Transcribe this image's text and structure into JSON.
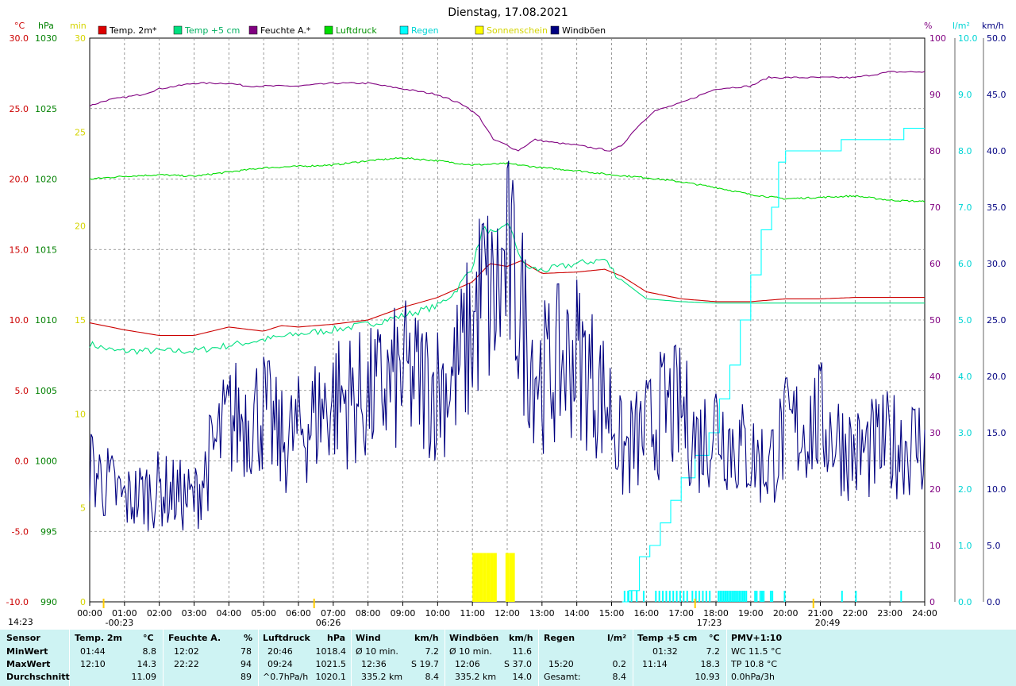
{
  "chart_data": {
    "type": "line",
    "title": "Dienstag, 17.08.2021",
    "x_ticks": [
      "00:00",
      "01:00",
      "02:00",
      "03:00",
      "04:00",
      "05:00",
      "06:00",
      "07:00",
      "08:00",
      "09:00",
      "10:00",
      "11:00",
      "12:00",
      "13:00",
      "14:00",
      "15:00",
      "16:00",
      "17:00",
      "18:00",
      "19:00",
      "20:00",
      "21:00",
      "22:00",
      "23:00",
      "24:00"
    ],
    "axes": {
      "temp": {
        "label": "°C",
        "ticks": [
          "30.0",
          "25.0",
          "20.0",
          "15.0",
          "10.0",
          "5.0",
          "0.0",
          "-5.0",
          "-10.0"
        ],
        "min": -10,
        "max": 30,
        "color": "#cc0000"
      },
      "pressure": {
        "label": "hPa",
        "ticks": [
          "1030",
          "1025",
          "1020",
          "1015",
          "1010",
          "1005",
          "1000",
          "995",
          "990"
        ],
        "min": 990,
        "max": 1030,
        "color": "#008000"
      },
      "sunshine": {
        "label": "min",
        "ticks": [
          "30",
          "25",
          "20",
          "15",
          "10",
          "5",
          "0"
        ],
        "min": 0,
        "max": 30,
        "color": "#d4d400"
      },
      "humidity": {
        "label": "%",
        "ticks": [
          "100",
          "90",
          "80",
          "70",
          "60",
          "50",
          "40",
          "30",
          "20",
          "10",
          "0"
        ],
        "min": 0,
        "max": 100,
        "color": "#800080"
      },
      "rain": {
        "label": "l/m²",
        "ticks": [
          "10.0",
          "9.0",
          "8.0",
          "7.0",
          "6.0",
          "5.0",
          "4.0",
          "3.0",
          "2.0",
          "1.0",
          "0.0"
        ],
        "min": 0,
        "max": 10,
        "color": "#00d4d4"
      },
      "wind": {
        "label": "km/h",
        "ticks": [
          "50.0",
          "45.0",
          "40.0",
          "35.0",
          "30.0",
          "25.0",
          "20.0",
          "15.0",
          "10.0",
          "5.0",
          "0.0"
        ],
        "min": 0,
        "max": 50,
        "color": "#000080"
      }
    },
    "legend": [
      {
        "name": "Temp. 2m*",
        "color": "#dd0000"
      },
      {
        "name": "Temp +5 cm",
        "color": "#00e080"
      },
      {
        "name": "Feuchte A.*",
        "color": "#800080"
      },
      {
        "name": "Luftdruck",
        "color": "#00dd00"
      },
      {
        "name": "Regen",
        "color": "#00ffff"
      },
      {
        "name": "Sonnenschein",
        "color": "#ffff00"
      },
      {
        "name": "Windböen",
        "color": "#000080"
      }
    ],
    "series": [
      {
        "key": "temp2m",
        "axis": "temp",
        "color": "#cc0000",
        "points": [
          [
            0,
            9.8
          ],
          [
            1,
            9.3
          ],
          [
            2,
            8.9
          ],
          [
            3,
            8.9
          ],
          [
            4,
            9.5
          ],
          [
            5,
            9.2
          ],
          [
            5.5,
            9.6
          ],
          [
            6,
            9.5
          ],
          [
            7,
            9.7
          ],
          [
            8,
            10.0
          ],
          [
            9,
            10.9
          ],
          [
            10,
            11.6
          ],
          [
            11,
            12.7
          ],
          [
            11.5,
            14.0
          ],
          [
            12,
            13.8
          ],
          [
            12.4,
            14.2
          ],
          [
            13,
            13.3
          ],
          [
            14,
            13.4
          ],
          [
            14.8,
            13.6
          ],
          [
            15.3,
            13.1
          ],
          [
            16,
            12.0
          ],
          [
            17,
            11.5
          ],
          [
            18,
            11.3
          ],
          [
            19,
            11.3
          ],
          [
            20,
            11.5
          ],
          [
            21,
            11.5
          ],
          [
            22,
            11.6
          ],
          [
            23,
            11.6
          ],
          [
            24,
            11.6
          ]
        ]
      },
      {
        "key": "temp5cm",
        "axis": "temp",
        "color": "#00e080",
        "points": [
          [
            0,
            8.3
          ],
          [
            0.7,
            7.8
          ],
          [
            2,
            7.8
          ],
          [
            3,
            7.8
          ],
          [
            4,
            8.2
          ],
          [
            5,
            8.6
          ],
          [
            6,
            9.0
          ],
          [
            7,
            9.3
          ],
          [
            8,
            9.7
          ],
          [
            9,
            10.3
          ],
          [
            10,
            11.0
          ],
          [
            10.5,
            12.0
          ],
          [
            11,
            13.8
          ],
          [
            11.3,
            16.5
          ],
          [
            11.7,
            16.0
          ],
          [
            12,
            17.0
          ],
          [
            12.3,
            15.0
          ],
          [
            12.5,
            13.8
          ],
          [
            13,
            13.5
          ],
          [
            14,
            14.0
          ],
          [
            14.8,
            14.3
          ],
          [
            15.2,
            13.0
          ],
          [
            16,
            11.5
          ],
          [
            17,
            11.3
          ],
          [
            18,
            11.2
          ],
          [
            19,
            11.2
          ],
          [
            20,
            11.2
          ],
          [
            21,
            11.2
          ],
          [
            22,
            11.2
          ],
          [
            23,
            11.2
          ],
          [
            24,
            11.2
          ]
        ],
        "dashed_from": 15.3
      },
      {
        "key": "humidity",
        "axis": "humidity",
        "color": "#800080",
        "points": [
          [
            0,
            88
          ],
          [
            0.5,
            89
          ],
          [
            1,
            89.5
          ],
          [
            1.5,
            90
          ],
          [
            2,
            91
          ],
          [
            3,
            92
          ],
          [
            4,
            92
          ],
          [
            4.5,
            91.5
          ],
          [
            5,
            91.5
          ],
          [
            5.5,
            91.5
          ],
          [
            6,
            91.5
          ],
          [
            7,
            92
          ],
          [
            8,
            92
          ],
          [
            8.5,
            91.5
          ],
          [
            9,
            91
          ],
          [
            10,
            90
          ],
          [
            10.8,
            88
          ],
          [
            11.2,
            86
          ],
          [
            11.6,
            82
          ],
          [
            12,
            81
          ],
          [
            12.3,
            80
          ],
          [
            12.8,
            82
          ],
          [
            13.3,
            81.5
          ],
          [
            14,
            81
          ],
          [
            14.5,
            80.5
          ],
          [
            15,
            80
          ],
          [
            15.3,
            81
          ],
          [
            15.7,
            84
          ],
          [
            16.2,
            87
          ],
          [
            17,
            88.5
          ],
          [
            18,
            91
          ],
          [
            19,
            91.5
          ],
          [
            19.5,
            93
          ],
          [
            20,
            93
          ],
          [
            21,
            93
          ],
          [
            22,
            93
          ],
          [
            23,
            94
          ],
          [
            24,
            94
          ]
        ]
      },
      {
        "key": "pressure",
        "axis": "pressure",
        "color": "#00dd00",
        "points": [
          [
            0,
            1020.0
          ],
          [
            1,
            1020.2
          ],
          [
            2,
            1020.3
          ],
          [
            3,
            1020.2
          ],
          [
            4,
            1020.5
          ],
          [
            5,
            1020.8
          ],
          [
            6,
            1020.9
          ],
          [
            7,
            1021.0
          ],
          [
            8,
            1021.3
          ],
          [
            9,
            1021.5
          ],
          [
            10,
            1021.3
          ],
          [
            11,
            1021.0
          ],
          [
            12,
            1021.1
          ],
          [
            13,
            1020.8
          ],
          [
            14,
            1020.6
          ],
          [
            15,
            1020.3
          ],
          [
            16,
            1020.1
          ],
          [
            17,
            1019.8
          ],
          [
            18,
            1019.4
          ],
          [
            19,
            1018.9
          ],
          [
            20,
            1018.6
          ],
          [
            21,
            1018.7
          ],
          [
            22,
            1018.8
          ],
          [
            23,
            1018.5
          ],
          [
            24,
            1018.4
          ]
        ]
      },
      {
        "key": "rain",
        "axis": "rain",
        "color": "#00ffff",
        "step": true,
        "points": [
          [
            15.3,
            0
          ],
          [
            15.5,
            0.2
          ],
          [
            15.8,
            0.8
          ],
          [
            16.1,
            1.0
          ],
          [
            16.4,
            1.4
          ],
          [
            16.7,
            1.8
          ],
          [
            17,
            2.2
          ],
          [
            17.4,
            2.6
          ],
          [
            17.8,
            3.0
          ],
          [
            18.1,
            3.6
          ],
          [
            18.4,
            4.2
          ],
          [
            18.7,
            5.0
          ],
          [
            19.0,
            5.8
          ],
          [
            19.3,
            6.6
          ],
          [
            19.6,
            7.0
          ],
          [
            19.8,
            7.8
          ],
          [
            20,
            8.0
          ],
          [
            21,
            8.0
          ],
          [
            21.6,
            8.2
          ],
          [
            22,
            8.2
          ],
          [
            23.4,
            8.4
          ],
          [
            24,
            8.4
          ]
        ]
      },
      {
        "key": "sunshine",
        "axis": "sunshine",
        "color": "#ffff00",
        "type": "bars",
        "points": [
          [
            11.0,
            2.6
          ],
          [
            11.1,
            2.6
          ],
          [
            11.2,
            2.6
          ],
          [
            11.3,
            2.6
          ],
          [
            11.4,
            2.6
          ],
          [
            11.5,
            2.6
          ],
          [
            11.6,
            2.6
          ],
          [
            11.95,
            2.6
          ],
          [
            12.05,
            2.6
          ],
          [
            12.12,
            2.6
          ]
        ]
      },
      {
        "key": "gusts",
        "axis": "wind",
        "color": "#000080",
        "noisy": true,
        "points": [
          [
            0,
            12
          ],
          [
            1,
            9
          ],
          [
            2,
            10
          ],
          [
            3,
            9
          ],
          [
            3.5,
            13
          ],
          [
            4,
            16
          ],
          [
            5,
            17
          ],
          [
            5.5,
            14
          ],
          [
            6,
            15
          ],
          [
            7,
            18
          ],
          [
            8,
            18
          ],
          [
            9,
            20
          ],
          [
            10,
            19
          ],
          [
            10.5,
            20
          ],
          [
            11,
            24
          ],
          [
            11.3,
            28
          ],
          [
            11.6,
            26
          ],
          [
            12,
            30
          ],
          [
            12.3,
            27
          ],
          [
            12.7,
            22
          ],
          [
            13,
            20
          ],
          [
            14,
            22
          ],
          [
            15,
            17
          ],
          [
            15.3,
            13
          ],
          [
            16,
            15
          ],
          [
            16.5,
            17
          ],
          [
            17,
            17
          ],
          [
            17.5,
            14
          ],
          [
            18,
            16
          ],
          [
            18.5,
            14
          ],
          [
            19,
            13
          ],
          [
            19.5,
            12
          ],
          [
            20,
            15
          ],
          [
            21,
            16
          ],
          [
            22,
            13
          ],
          [
            23,
            14
          ],
          [
            24,
            14
          ]
        ]
      }
    ],
    "rain_ticks_hours": [
      15.35,
      15.45,
      15.55,
      15.7,
      15.9,
      16.25,
      16.35,
      16.45,
      16.55,
      16.65,
      16.75,
      16.85,
      16.95,
      17.05,
      17.15,
      17.3,
      17.4,
      17.5,
      17.6,
      17.7,
      17.8,
      18.05,
      18.1,
      18.15,
      18.2,
      18.25,
      18.3,
      18.35,
      18.4,
      18.45,
      18.5,
      18.55,
      18.6,
      18.65,
      18.7,
      18.75,
      18.8,
      18.85,
      19.1,
      19.15,
      19.25,
      19.3,
      19.35,
      19.55,
      19.6,
      19.95,
      21.6,
      22.0,
      23.3
    ],
    "sun_markers": [
      {
        "label": "-00:23",
        "hour": 0.4
      },
      {
        "label": "06:26",
        "hour": 6.45
      },
      {
        "label": "17:23",
        "hour": 17.4
      },
      {
        "label": "20:49",
        "hour": 20.8
      }
    ],
    "corner_label": "14:23"
  },
  "stats": {
    "headers": {
      "sensor": "Sensor",
      "temp2m": "Temp. 2m",
      "temp2m_unit": "°C",
      "feuchte": "Feuchte A.",
      "feuchte_unit": "%",
      "luftdruck": "Luftdruck",
      "luftdruck_unit": "hPa",
      "wind": "Wind",
      "wind_unit": "km/h",
      "windboeen": "Windböen",
      "windboeen_unit": "km/h",
      "regen": "Regen",
      "regen_unit": "l/m²",
      "temp5": "Temp +5 cm",
      "temp5_unit": "°C",
      "pmv": "PMV+1:10"
    },
    "rows": {
      "min": "MinWert",
      "max": "MaxWert",
      "avg": "Durchschnitt"
    },
    "temp2m": {
      "min_time": "01:44",
      "min_val": "8.8",
      "max_time": "12:10",
      "max_val": "14.3",
      "avg": "11.09"
    },
    "feuchte": {
      "min_time": "12:02",
      "min_val": "78",
      "max_time": "22:22",
      "max_val": "94",
      "avg": "89"
    },
    "luftdruck": {
      "min_time": "20:46",
      "min_val": "1018.4",
      "max_time": "09:24",
      "max_val": "1021.5",
      "trend": "^0.7hPa/h",
      "avg": "1020.1"
    },
    "wind": {
      "min_label": "Ø 10 min.",
      "min_val": "7.2",
      "max_time": "12:36",
      "max_val": "S 19.7",
      "dist": "335.2 km",
      "avg": "8.4"
    },
    "windboeen": {
      "min_label": "Ø 10 min.",
      "min_val": "11.6",
      "max_time": "12:06",
      "max_val": "S 37.0",
      "dist": "335.2 km",
      "avg": "14.0"
    },
    "regen": {
      "max_time": "15:20",
      "max_val": "0.2",
      "total_label": "Gesamt:",
      "total_val": "8.4"
    },
    "temp5": {
      "min_time": "01:32",
      "min_val": "7.2",
      "max_time": "11:14",
      "max_val": "18.3",
      "avg": "10.93"
    },
    "pmv": {
      "wc": "WC 11.5 °C",
      "tp": "TP 10.8 °C",
      "trend": "0.0hPa/3h"
    }
  }
}
